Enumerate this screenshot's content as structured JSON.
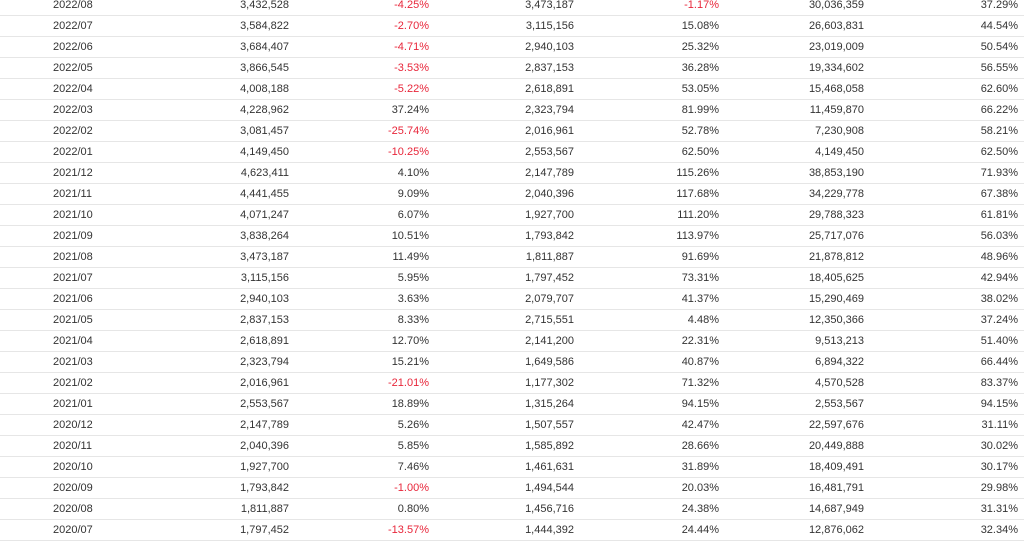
{
  "colors": {
    "negative": "#e8263a",
    "text": "#333333",
    "row_border": "#e6e6e6"
  },
  "rows": [
    [
      "2022/08",
      "3,432,528",
      "-4.25%",
      "3,473,187",
      "-1.17%",
      "30,036,359",
      "37.29%"
    ],
    [
      "2022/07",
      "3,584,822",
      "-2.70%",
      "3,115,156",
      "15.08%",
      "26,603,831",
      "44.54%"
    ],
    [
      "2022/06",
      "3,684,407",
      "-4.71%",
      "2,940,103",
      "25.32%",
      "23,019,009",
      "50.54%"
    ],
    [
      "2022/05",
      "3,866,545",
      "-3.53%",
      "2,837,153",
      "36.28%",
      "19,334,602",
      "56.55%"
    ],
    [
      "2022/04",
      "4,008,188",
      "-5.22%",
      "2,618,891",
      "53.05%",
      "15,468,058",
      "62.60%"
    ],
    [
      "2022/03",
      "4,228,962",
      "37.24%",
      "2,323,794",
      "81.99%",
      "11,459,870",
      "66.22%"
    ],
    [
      "2022/02",
      "3,081,457",
      "-25.74%",
      "2,016,961",
      "52.78%",
      "7,230,908",
      "58.21%"
    ],
    [
      "2022/01",
      "4,149,450",
      "-10.25%",
      "2,553,567",
      "62.50%",
      "4,149,450",
      "62.50%"
    ],
    [
      "2021/12",
      "4,623,411",
      "4.10%",
      "2,147,789",
      "115.26%",
      "38,853,190",
      "71.93%"
    ],
    [
      "2021/11",
      "4,441,455",
      "9.09%",
      "2,040,396",
      "117.68%",
      "34,229,778",
      "67.38%"
    ],
    [
      "2021/10",
      "4,071,247",
      "6.07%",
      "1,927,700",
      "111.20%",
      "29,788,323",
      "61.81%"
    ],
    [
      "2021/09",
      "3,838,264",
      "10.51%",
      "1,793,842",
      "113.97%",
      "25,717,076",
      "56.03%"
    ],
    [
      "2021/08",
      "3,473,187",
      "11.49%",
      "1,811,887",
      "91.69%",
      "21,878,812",
      "48.96%"
    ],
    [
      "2021/07",
      "3,115,156",
      "5.95%",
      "1,797,452",
      "73.31%",
      "18,405,625",
      "42.94%"
    ],
    [
      "2021/06",
      "2,940,103",
      "3.63%",
      "2,079,707",
      "41.37%",
      "15,290,469",
      "38.02%"
    ],
    [
      "2021/05",
      "2,837,153",
      "8.33%",
      "2,715,551",
      "4.48%",
      "12,350,366",
      "37.24%"
    ],
    [
      "2021/04",
      "2,618,891",
      "12.70%",
      "2,141,200",
      "22.31%",
      "9,513,213",
      "51.40%"
    ],
    [
      "2021/03",
      "2,323,794",
      "15.21%",
      "1,649,586",
      "40.87%",
      "6,894,322",
      "66.44%"
    ],
    [
      "2021/02",
      "2,016,961",
      "-21.01%",
      "1,177,302",
      "71.32%",
      "4,570,528",
      "83.37%"
    ],
    [
      "2021/01",
      "2,553,567",
      "18.89%",
      "1,315,264",
      "94.15%",
      "2,553,567",
      "94.15%"
    ],
    [
      "2020/12",
      "2,147,789",
      "5.26%",
      "1,507,557",
      "42.47%",
      "22,597,676",
      "31.11%"
    ],
    [
      "2020/11",
      "2,040,396",
      "5.85%",
      "1,585,892",
      "28.66%",
      "20,449,888",
      "30.02%"
    ],
    [
      "2020/10",
      "1,927,700",
      "7.46%",
      "1,461,631",
      "31.89%",
      "18,409,491",
      "30.17%"
    ],
    [
      "2020/09",
      "1,793,842",
      "-1.00%",
      "1,494,544",
      "20.03%",
      "16,481,791",
      "29.98%"
    ],
    [
      "2020/08",
      "1,811,887",
      "0.80%",
      "1,456,716",
      "24.38%",
      "14,687,949",
      "31.31%"
    ],
    [
      "2020/07",
      "1,797,452",
      "-13.57%",
      "1,444,392",
      "24.44%",
      "12,876,062",
      "32.34%"
    ]
  ]
}
